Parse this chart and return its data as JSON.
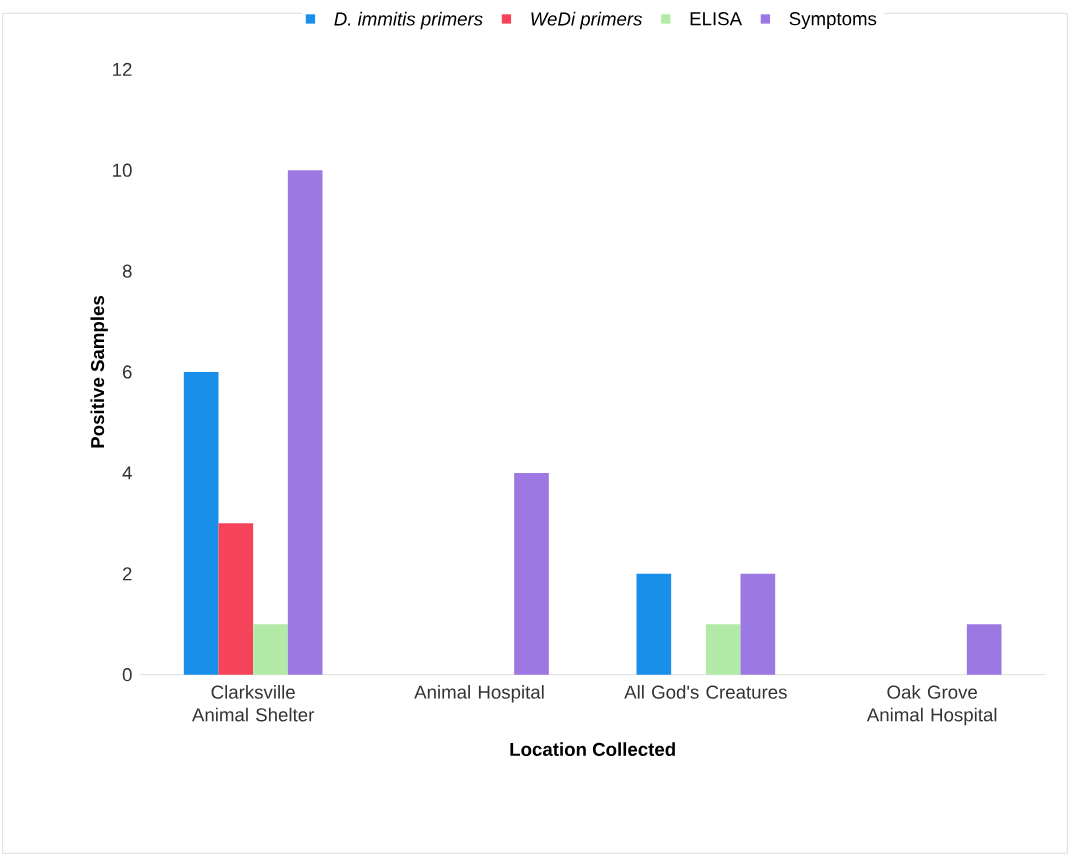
{
  "chart_data": {
    "type": "bar",
    "xlabel": "Location Collected",
    "ylabel": "Positive Samples",
    "categories": [
      "Clarksville Animal Shelter",
      "Animal Hospital",
      "All God's Creatures",
      "Oak Grove Animal Hospital"
    ],
    "series": [
      {
        "name": "*D. immitis primers*",
        "color": "#1a8fea",
        "values": [
          6,
          0,
          2,
          0
        ]
      },
      {
        "name": "*WeDi primers*",
        "color": "#f5445a",
        "values": [
          3,
          0,
          0,
          0
        ]
      },
      {
        "name": "ELISA",
        "color": "#b4eaa8",
        "values": [
          1,
          0,
          1,
          0
        ]
      },
      {
        "name": "Symptoms",
        "color": "#9c78e2",
        "values": [
          10,
          4,
          2,
          1
        ]
      }
    ],
    "ylim": [
      0,
      12
    ],
    "yticks": [
      0,
      2,
      4,
      6,
      8,
      10,
      12
    ],
    "grid": false,
    "legend": "top"
  }
}
